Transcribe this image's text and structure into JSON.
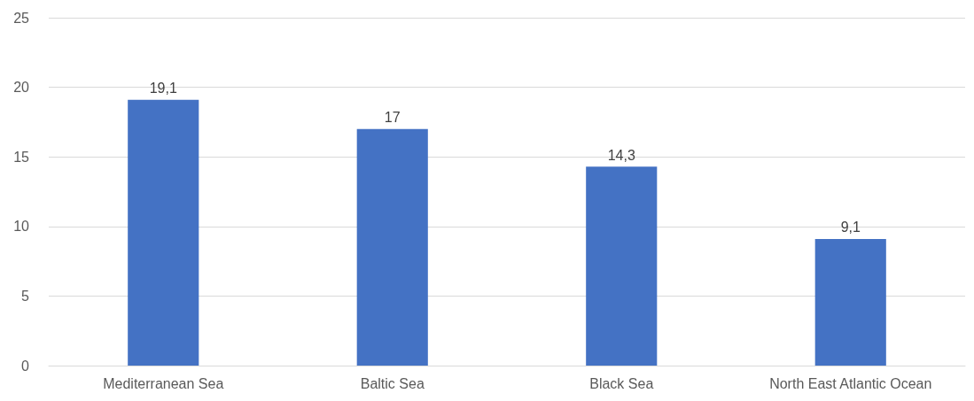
{
  "chart_data": {
    "type": "bar",
    "categories": [
      "Mediterranean Sea",
      "Baltic Sea",
      "Black Sea",
      "North East Atlantic Ocean"
    ],
    "values": [
      19.1,
      17,
      14.3,
      9.1
    ],
    "value_labels": [
      "19,1",
      "17",
      "14,3",
      "9,1"
    ],
    "color": "#4472c4",
    "ylim": [
      0,
      25
    ],
    "yticks": [
      0,
      5,
      10,
      15,
      20,
      25
    ],
    "grid": "y"
  }
}
